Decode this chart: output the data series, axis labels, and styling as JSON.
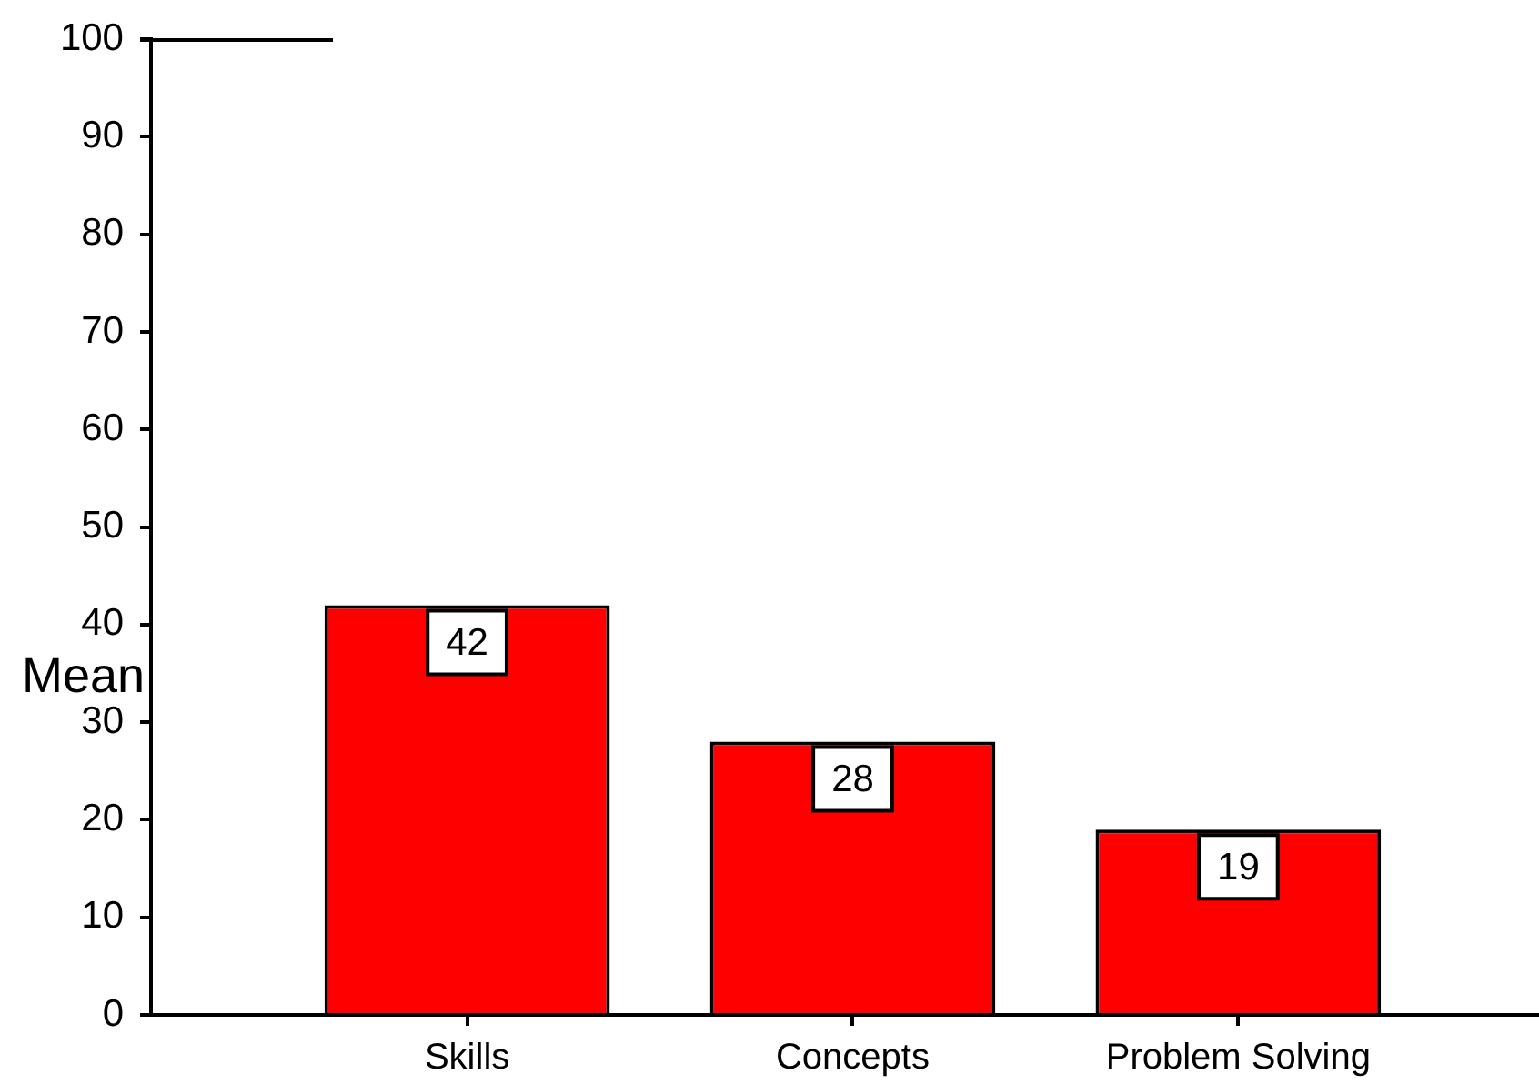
{
  "chart_data": {
    "type": "bar",
    "ylabel": "Mean",
    "categories": [
      "Skills",
      "Concepts",
      "Problem Solving"
    ],
    "values": [
      42,
      28,
      19
    ],
    "color": "#ff0000",
    "ylim": [
      0,
      100
    ],
    "yticks": [
      0,
      10,
      20,
      30,
      40,
      50,
      60,
      70,
      80,
      90,
      100
    ],
    "data_labels": true
  }
}
